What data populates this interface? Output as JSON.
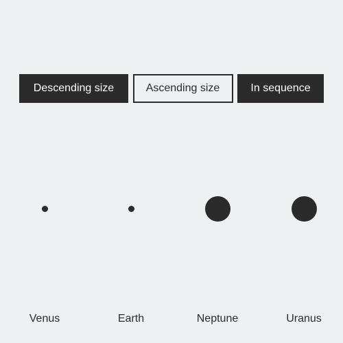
{
  "controls": {
    "descending_label": "Descending size",
    "ascending_label": "Ascending size",
    "sequence_label": "In sequence"
  },
  "planets": [
    {
      "name": "Venus",
      "dot": "small"
    },
    {
      "name": "Earth",
      "dot": "small"
    },
    {
      "name": "Neptune",
      "dot": "large"
    },
    {
      "name": "Uranus",
      "dot": "large"
    }
  ],
  "colors": {
    "background": "#edf1f2",
    "dark": "#2b2b2b",
    "light_text": "#ffffff"
  }
}
